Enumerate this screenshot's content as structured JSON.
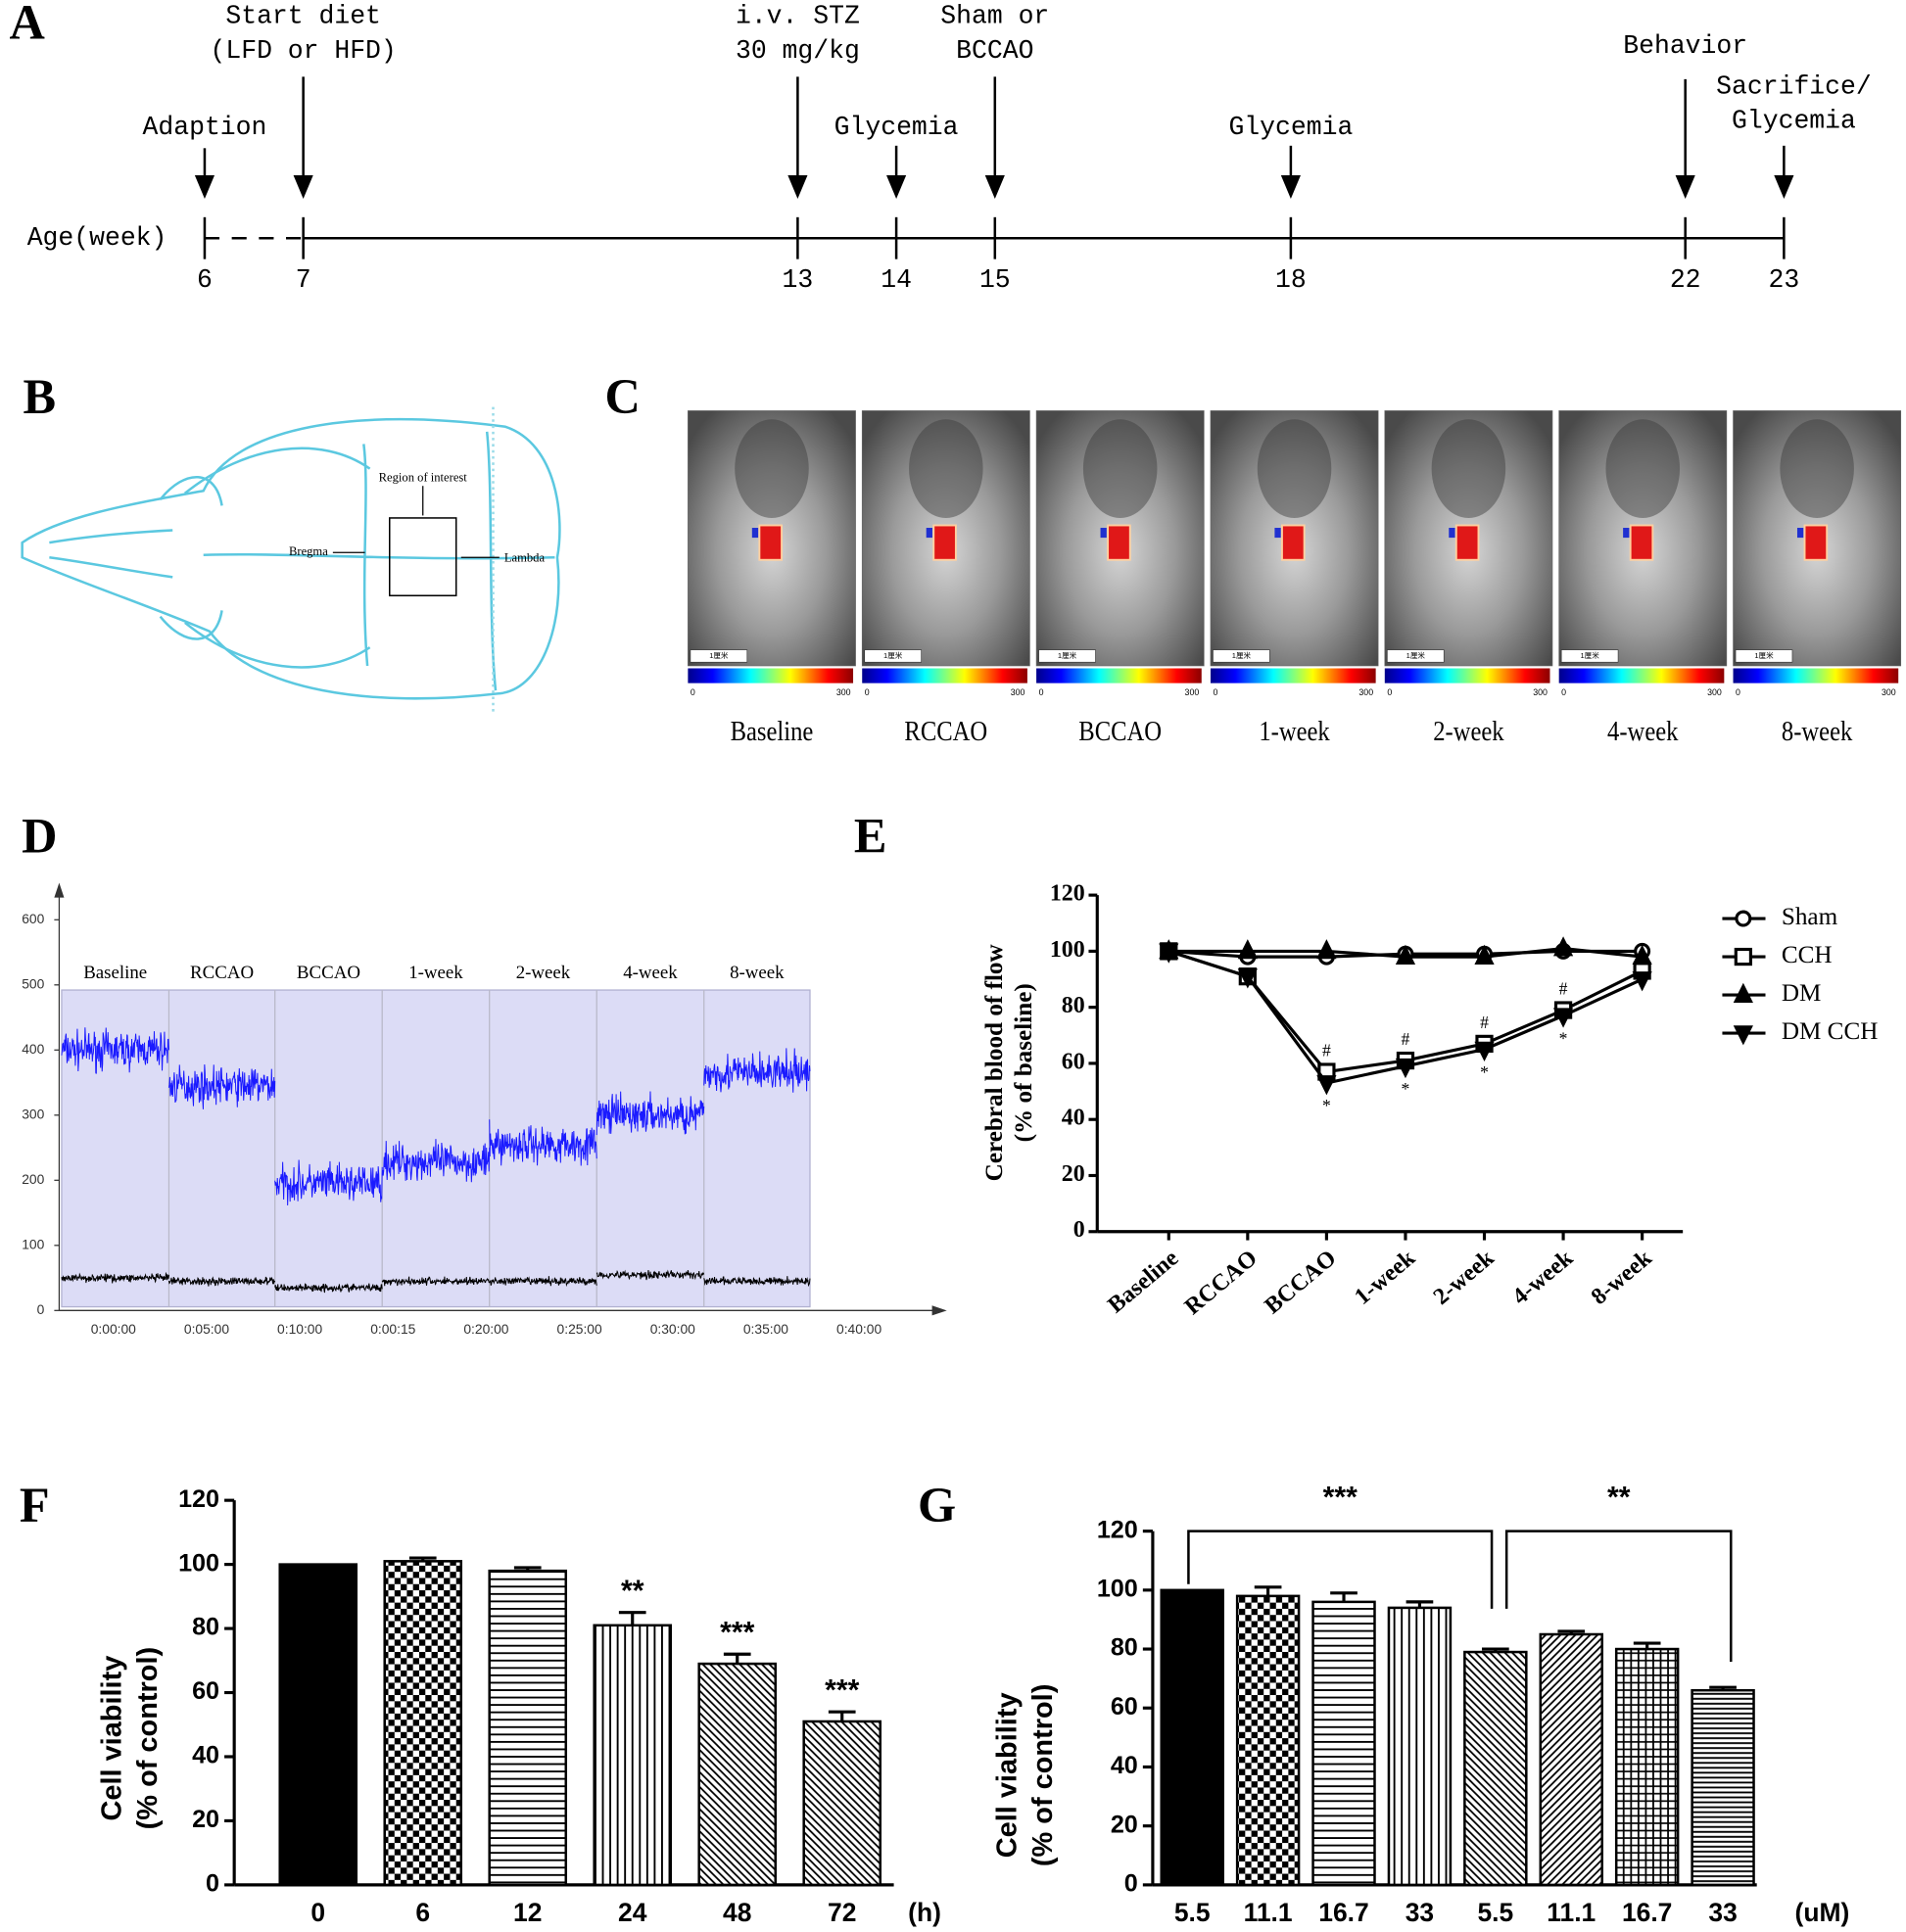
{
  "panels": [
    "A",
    "B",
    "C",
    "D",
    "E",
    "F",
    "G"
  ],
  "timeline": {
    "axis_label": "Age(week)",
    "weeks": [
      6,
      7,
      13,
      14,
      15,
      18,
      22,
      23
    ],
    "events": [
      [
        "Adaption"
      ],
      [
        "Start diet",
        "(LFD or HFD)"
      ],
      [
        "i.v. STZ",
        "30 mg/kg"
      ],
      [
        "Glycemia"
      ],
      [
        "Sham or",
        "BCCAO"
      ],
      [
        "Glycemia"
      ],
      [
        "Behavior"
      ],
      [
        "Sacrifice/",
        "Glycemia"
      ]
    ]
  },
  "skull": {
    "region_label": "Region of interest",
    "bregma_label": "Bregma",
    "lambda_label": "Lambda"
  },
  "laser_images": {
    "stages": [
      "Baseline",
      "RCCAO",
      "BCCAO",
      "1-week",
      "2-week",
      "4-week",
      "8-week"
    ],
    "scale_min": 0,
    "scale_max": 300,
    "scale_bar": "1厘米"
  },
  "chart_data": [
    {
      "type": "trace",
      "categories": [
        "Baseline",
        "RCCAO",
        "BCCAO",
        "1-week",
        "2-week",
        "4-week",
        "8-week"
      ],
      "x_tick_labels": [
        "0:00:00",
        "0:05:00",
        "0:10:00",
        "0:00:15",
        "0:20:00",
        "0:25:00",
        "0:30:00",
        "0:35:00",
        "0:40:00"
      ],
      "series": [
        {
          "color": "#1a1aff",
          "values": [
            400,
            345,
            195,
            228,
            255,
            300,
            365
          ]
        },
        {
          "color": "#000000",
          "values": [
            50,
            45,
            35,
            45,
            45,
            55,
            45
          ]
        }
      ],
      "ylim": [
        0,
        600
      ],
      "yticks": [
        0,
        100,
        200,
        300,
        400,
        500,
        600
      ]
    },
    {
      "type": "line",
      "categories": [
        "Baseline",
        "RCCAO",
        "BCCAO",
        "1-week",
        "2-week",
        "4-week",
        "8-week"
      ],
      "y_label": [
        "Cerebral blood of flow",
        "(% of baseline)"
      ],
      "series": [
        {
          "name": "Sham",
          "color": "#000000",
          "marker": "circle",
          "values": [
            100,
            98,
            98,
            99,
            99,
            100,
            100
          ]
        },
        {
          "name": "CCH",
          "color": "#000000",
          "marker": "square",
          "values": [
            100,
            91,
            57,
            61,
            67,
            79,
            93
          ]
        },
        {
          "name": "DM",
          "color": "#000000",
          "marker": "triangle-up",
          "values": [
            100,
            100,
            100,
            98,
            98,
            101,
            98
          ]
        },
        {
          "name": "DM CCH",
          "color": "#000000",
          "marker": "triangle-down",
          "values": [
            100,
            91,
            53,
            59,
            65,
            77,
            90
          ]
        }
      ],
      "annotations_above": [
        null,
        null,
        "#",
        "#",
        "#",
        "#",
        null
      ],
      "annotations_below": [
        null,
        null,
        "*",
        "*",
        "*",
        "*",
        null
      ],
      "ylim": [
        0,
        120
      ],
      "yticks": [
        0,
        20,
        40,
        60,
        80,
        100,
        120
      ]
    },
    {
      "type": "bar",
      "categories": [
        "0",
        "6",
        "12",
        "24",
        "48",
        "72"
      ],
      "x_unit": "(h)",
      "y_label": [
        "Cell viability",
        "(% of control)"
      ],
      "values": [
        100,
        101,
        98,
        81,
        69,
        51
      ],
      "errors": [
        0,
        1,
        1,
        4,
        3,
        3
      ],
      "significance": [
        null,
        null,
        null,
        "**",
        "***",
        "***"
      ],
      "color": "#000000",
      "ylim": [
        0,
        120
      ],
      "yticks": [
        0,
        20,
        40,
        60,
        80,
        100,
        120
      ]
    },
    {
      "type": "bar",
      "categories": [
        "5.5",
        "11.1",
        "16.7",
        "33",
        "5.5",
        "11.1",
        "16.7",
        "33"
      ],
      "x_unit": "(uM)",
      "y_label": [
        "Cell viability",
        "(% of control)"
      ],
      "values": [
        100,
        98,
        96,
        94,
        79,
        85,
        80,
        66
      ],
      "errors": [
        0,
        3,
        3,
        2,
        1,
        1,
        2,
        1
      ],
      "brackets": [
        "***",
        "**"
      ],
      "color": "#000000",
      "ylim": [
        0,
        120
      ],
      "yticks": [
        0,
        20,
        40,
        60,
        80,
        100,
        120
      ]
    }
  ]
}
